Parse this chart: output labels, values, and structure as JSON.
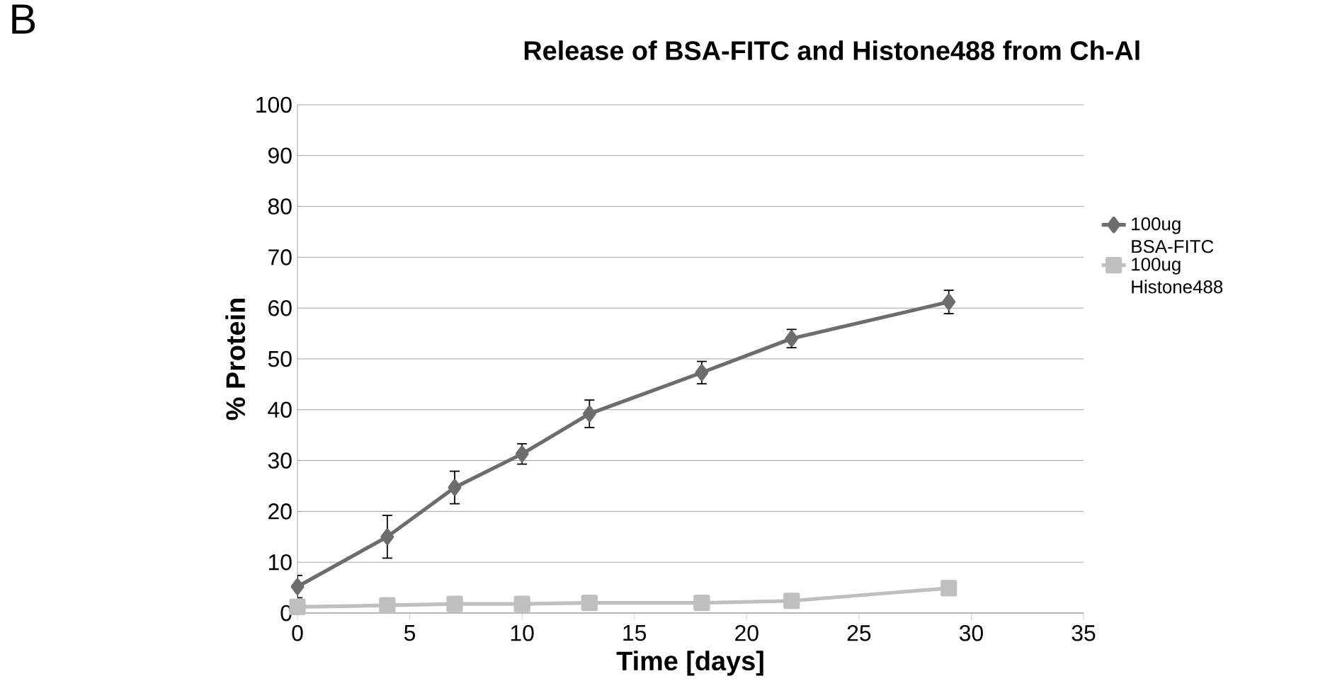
{
  "chart_data": {
    "type": "line",
    "title": "Release of BSA-FITC and Histone488 from Ch-Al",
    "xlabel": "Time [days]",
    "ylabel": "% Protein",
    "annotations": [
      "B"
    ],
    "x": [
      0,
      4,
      7,
      10,
      13,
      18,
      22,
      29
    ],
    "series": [
      {
        "name": "100ug BSA-FITC",
        "color": "#6d6d6d",
        "marker": "diamond",
        "values": [
          5.2,
          15,
          24.7,
          31.3,
          39.2,
          47.3,
          54,
          61.2
        ],
        "errors": [
          2.2,
          4.2,
          3.2,
          2,
          2.7,
          2.2,
          1.8,
          2.3
        ]
      },
      {
        "name": "100ug Histone488",
        "color": "#bfbfbf",
        "marker": "square",
        "values": [
          1.2,
          1.5,
          1.8,
          1.8,
          2,
          2,
          2.4,
          4.9
        ]
      }
    ],
    "xlim": [
      0,
      35
    ],
    "xticks": [
      0,
      5,
      10,
      15,
      20,
      25,
      30,
      35
    ],
    "ylim": [
      0,
      100
    ],
    "yticks": [
      0,
      10,
      20,
      30,
      40,
      50,
      60,
      70,
      80,
      90,
      100
    ],
    "grid": "y",
    "legend": "right",
    "line_style": "solid"
  }
}
